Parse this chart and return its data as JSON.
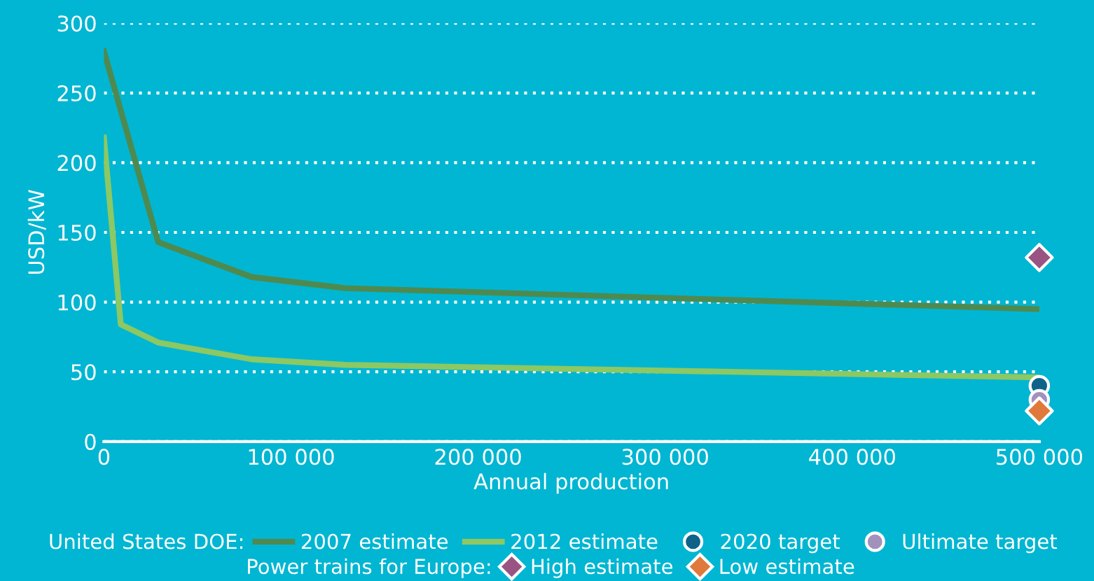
{
  "chart_data": {
    "type": "line",
    "xlabel": "Annual production",
    "ylabel": "USD/kW",
    "xlim": [
      0,
      500000
    ],
    "ylim": [
      0,
      300
    ],
    "xticks": [
      0,
      {
        "value": 100000,
        "label": "100 000"
      },
      {
        "value": 200000,
        "label": "200 000"
      },
      {
        "value": 300000,
        "label": "300 000"
      },
      {
        "value": 400000,
        "label": "400 000"
      },
      {
        "value": 500000,
        "label": "500 000"
      }
    ],
    "yticks": [
      0,
      50,
      100,
      150,
      200,
      250,
      300
    ],
    "grid": "y",
    "legend": "bottom",
    "line_style": "solid",
    "annotations": [
      "United States DOE:",
      "Power trains for Europe:"
    ],
    "series": [
      {
        "name": "2007 estimate",
        "color": "#4e8a50",
        "x": [
          0,
          29000,
          79000,
          129000,
          300000,
          500000
        ],
        "values": [
          280,
          143,
          118,
          110,
          103,
          95
        ]
      },
      {
        "name": "2012 estimate",
        "color": "#8cc863",
        "x": [
          0,
          9000,
          29000,
          79000,
          129000,
          500000
        ],
        "values": [
          218,
          84,
          71,
          59,
          55,
          46
        ]
      },
      {
        "name": "2020 target",
        "type": "scatter",
        "marker": "circle",
        "color": "#0f6388",
        "x": [
          500000
        ],
        "values": [
          40
        ]
      },
      {
        "name": "Ultimate target",
        "type": "scatter",
        "marker": "circle",
        "color": "#a291bd",
        "x": [
          500000
        ],
        "values": [
          30
        ]
      },
      {
        "name": "High estimate",
        "type": "scatter",
        "marker": "diamond",
        "color": "#9a5484",
        "x": [
          500000
        ],
        "values": [
          132
        ]
      },
      {
        "name": "Low estimate",
        "type": "scatter",
        "marker": "diamond",
        "color": "#e07a3c",
        "x": [
          500000
        ],
        "values": [
          22
        ]
      }
    ]
  }
}
